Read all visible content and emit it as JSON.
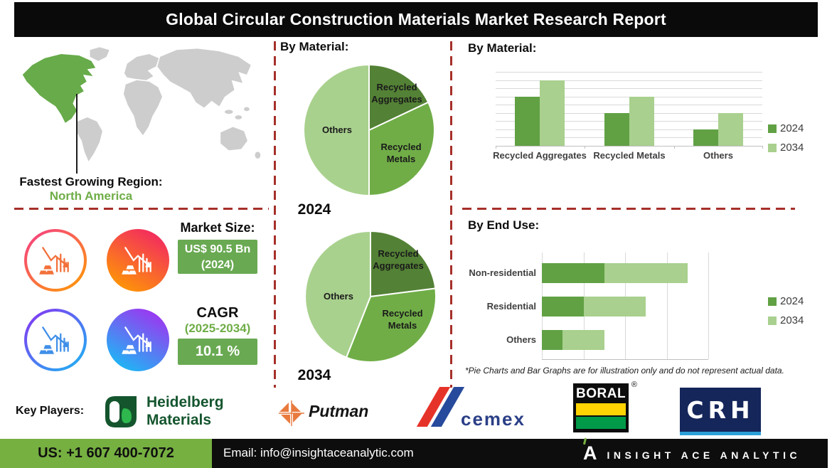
{
  "title": "Global Circular Construction Materials Market Research Report",
  "region": {
    "label": "Fastest Growing Region:",
    "value": "North America"
  },
  "market": {
    "size_label": "Market Size:",
    "size_value": "US$ 90.5 Bn",
    "size_year": "(2024)",
    "cagr_label": "CAGR",
    "cagr_period": "(2025-2034)",
    "cagr_value": "10.1 %"
  },
  "disclaimer": "*Pie Charts and Bar Graphs are for illustration only and do not represent actual data.",
  "key_players": {
    "label": "Key Players:",
    "heidelberg_line1": "Heidelberg",
    "heidelberg_line2": "Materials",
    "putman": "Putman",
    "cemex": "cemex",
    "boral": "BORAL",
    "boral_reg": "®",
    "crh": "CRH"
  },
  "footer": {
    "phone": "US: +1 607 400-7072",
    "email": "Email: info@insightaceanalytic.com",
    "brand": "INSIGHT ACE ANALYTIC"
  },
  "colors": {
    "pie_dark_green": "#538135",
    "pie_mid_green": "#70ad47",
    "pie_light_green": "#a9d18e",
    "series_2024": "#61a144",
    "series_2034": "#a9d08e",
    "accent_box_green": "#69a952",
    "footer_green": "#76b041",
    "divider_red": "#a6302a",
    "region_green": "#6fad47",
    "highlight_region_green": "#67ab4a",
    "map_gray": "#cdcdcd"
  },
  "icons": {
    "world_map": "simplified-world-map",
    "stat_circle": "declining-chart-with-gold-bars",
    "brand_mark": "stylized-A-with-green-accent"
  },
  "chart_data": [
    {
      "type": "pie",
      "title": "By Material:",
      "year_label": "2024",
      "labels": [
        "Recycled Aggregates",
        "Recycled Metals",
        "Others"
      ],
      "values": [
        18,
        32,
        50
      ],
      "unit": "percent (illustrative)",
      "colors": [
        "#538135",
        "#70ad47",
        "#a9d18e"
      ]
    },
    {
      "type": "pie",
      "title": "By Material:",
      "year_label": "2034",
      "labels": [
        "Recycled Aggregates",
        "Recycled Metals",
        "Others"
      ],
      "values": [
        23,
        33,
        44
      ],
      "unit": "percent (illustrative)",
      "colors": [
        "#538135",
        "#70ad47",
        "#a9d18e"
      ]
    },
    {
      "type": "bar",
      "title": "By Material:",
      "categories": [
        "Recycled Aggregates",
        "Recycled Metals",
        "Others"
      ],
      "series": [
        {
          "name": "2024",
          "values": [
            6,
            4,
            2
          ],
          "color": "#61a144"
        },
        {
          "name": "2034",
          "values": [
            8,
            6,
            4
          ],
          "color": "#a9d08e"
        }
      ],
      "ylim": [
        0,
        9
      ],
      "grid": true,
      "legend_position": "right",
      "note": "no numeric axis labels shown; values estimated from gridlines (illustrative)"
    },
    {
      "type": "bar-horizontal-stacked",
      "title": "By End Use:",
      "categories": [
        "Non-residential",
        "Residential",
        "Others"
      ],
      "series": [
        {
          "name": "2024",
          "values": [
            1.5,
            1.0,
            0.5
          ],
          "color": "#61a144"
        },
        {
          "name": "2034",
          "values": [
            2.0,
            1.5,
            1.0
          ],
          "color": "#a9d08e"
        }
      ],
      "xlim": [
        0,
        4
      ],
      "grid": true,
      "legend_position": "right",
      "note": "no numeric axis labels shown; values estimated from gridlines (illustrative)"
    }
  ]
}
